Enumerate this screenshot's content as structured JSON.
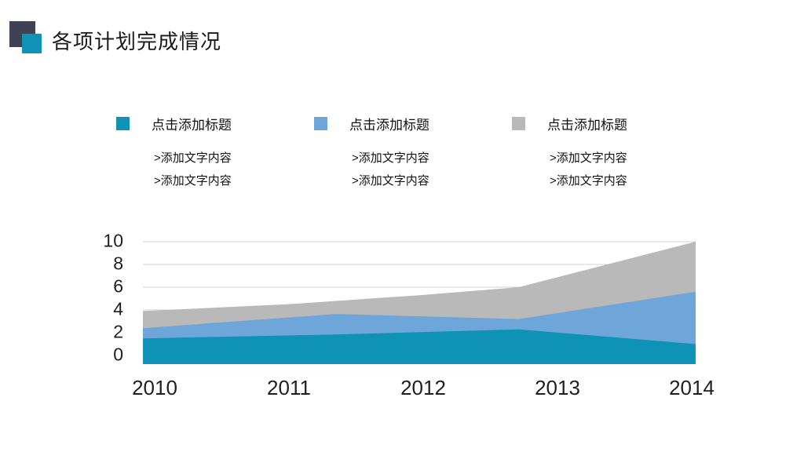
{
  "slide": {
    "title": "各项计划完成情况"
  },
  "deco": {
    "dark_square_color": "#3e4254",
    "blue_square_color": "#0e93b6"
  },
  "legend": {
    "columns": [
      {
        "swatch_color": "#0e93b6",
        "title": "点击添加标题",
        "items": [
          ">添加文字内容",
          ">添加文字内容"
        ]
      },
      {
        "swatch_color": "#6fa6da",
        "title": "点击添加标题",
        "items": [
          ">添加文字内容",
          ">添加文字内容"
        ]
      },
      {
        "swatch_color": "#b9b9b9",
        "title": "点击添加标题",
        "items": [
          ">添加文字内容",
          ">添加文字内容"
        ]
      }
    ]
  },
  "chart_data": {
    "type": "area",
    "stacked": true,
    "title": "",
    "xlabel": "",
    "ylabel": "",
    "categories": [
      "2010",
      "2011",
      "2012",
      "2013",
      "2014"
    ],
    "y_ticks": [
      10,
      8,
      6,
      4,
      2,
      0
    ],
    "ylim": [
      0,
      10
    ],
    "baseline_overshoot": -0.7,
    "grid": "horizontal",
    "gridline_color": "#d2d2d2",
    "legend_position": "none",
    "series": [
      {
        "name": "点击添加标题",
        "color": "#0e93b6",
        "cumulative_top_by_year": [
          1.5,
          1.9,
          2.1,
          2.0,
          1.0
        ],
        "profile": [
          [
            0,
            1.5
          ],
          [
            0.35,
            1.85
          ],
          [
            0.68,
            2.3
          ],
          [
            1,
            1.0
          ]
        ]
      },
      {
        "name": "点击添加标题",
        "color": "#6fa6da",
        "cumulative_top_by_year": [
          2.4,
          3.5,
          3.6,
          3.8,
          5.6
        ],
        "profile": [
          [
            0,
            2.4
          ],
          [
            0.35,
            3.65
          ],
          [
            0.68,
            3.2
          ],
          [
            1,
            5.6
          ]
        ]
      },
      {
        "name": "点击添加标题",
        "color": "#b9b9b9",
        "cumulative_top_by_year": [
          3.9,
          4.6,
          5.3,
          6.9,
          10.0
        ],
        "profile": [
          [
            0,
            3.9
          ],
          [
            0.26,
            4.5
          ],
          [
            0.5,
            5.3
          ],
          [
            0.68,
            6.0
          ],
          [
            1,
            10.0
          ]
        ]
      }
    ]
  }
}
